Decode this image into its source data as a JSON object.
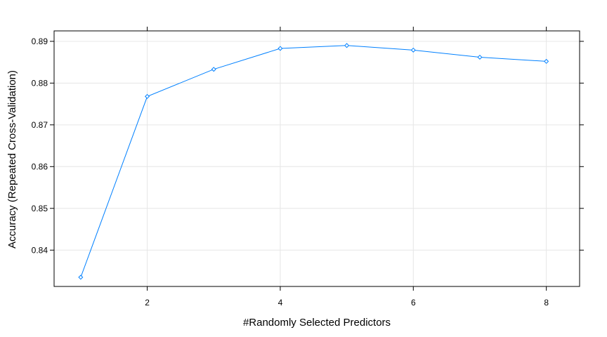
{
  "chart_data": {
    "type": "line",
    "title": "",
    "xlabel": "#Randomly Selected Predictors",
    "ylabel": "Accuracy (Repeated Cross-Validation)",
    "x": [
      1,
      2,
      3,
      4,
      5,
      6,
      7,
      8
    ],
    "series": [
      {
        "values": [
          0.8335,
          0.8768,
          0.8833,
          0.8883,
          0.889,
          0.8879,
          0.8862,
          0.8852
        ],
        "color": "#0080ff",
        "marker": "diamond"
      }
    ],
    "xlim": [
      0.6,
      8.5
    ],
    "ylim": [
      0.8313,
      0.8925
    ],
    "xticks": [
      2,
      4,
      6,
      8
    ],
    "yticks": [
      0.84,
      0.85,
      0.86,
      0.87,
      0.88,
      0.89
    ],
    "xtick_labels": [
      "2",
      "4",
      "6",
      "8"
    ],
    "ytick_labels": [
      "0.84",
      "0.85",
      "0.86",
      "0.87",
      "0.88",
      "0.89"
    ],
    "grid": true,
    "grid_color": "#e6e6e6",
    "legend": false
  }
}
